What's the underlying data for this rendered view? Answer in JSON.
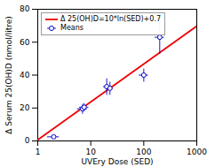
{
  "chart_data": {
    "type": "scatter",
    "xlabel": "UVEry Dose (SED)",
    "ylabel": "Δ Serum 25(OH)D (nmol/litre)",
    "xlim": [
      1,
      1000
    ],
    "ylim": [
      0,
      80
    ],
    "xticks": [
      1,
      10,
      100,
      1000
    ],
    "yticks": [
      0,
      20,
      40,
      60,
      80
    ],
    "log": "x",
    "grid": false,
    "legend": "upper left",
    "series": [
      {
        "name": "Δ 25(OH)D=10*ln(SED)+0.7",
        "type": "line",
        "color": "#ee0000",
        "x": [
          1,
          1000
        ],
        "values": [
          0.7,
          69.77755278982137
        ]
      },
      {
        "name": "Means",
        "type": "scatter",
        "color": "#0000cc",
        "marker": "circle",
        "x": [
          2.0,
          7.0,
          7.5,
          20.0,
          23.0,
          100.0,
          200.0
        ],
        "values": [
          2.5,
          19.5,
          20.5,
          33.0,
          32.0,
          40.0,
          63.0
        ],
        "xerr_lo": [
          0.5,
          1.5,
          1.5,
          3.0,
          3.0,
          20.0,
          40.0
        ],
        "xerr_hi": [
          0.5,
          1.5,
          1.5,
          3.0,
          3.0,
          20.0,
          40.0
        ],
        "yerr_lo": [
          0.5,
          3.0,
          2.5,
          5.0,
          4.0,
          4.0,
          10.0
        ],
        "yerr_hi": [
          0.5,
          3.0,
          2.5,
          5.0,
          4.0,
          4.0,
          12.0
        ]
      }
    ]
  }
}
